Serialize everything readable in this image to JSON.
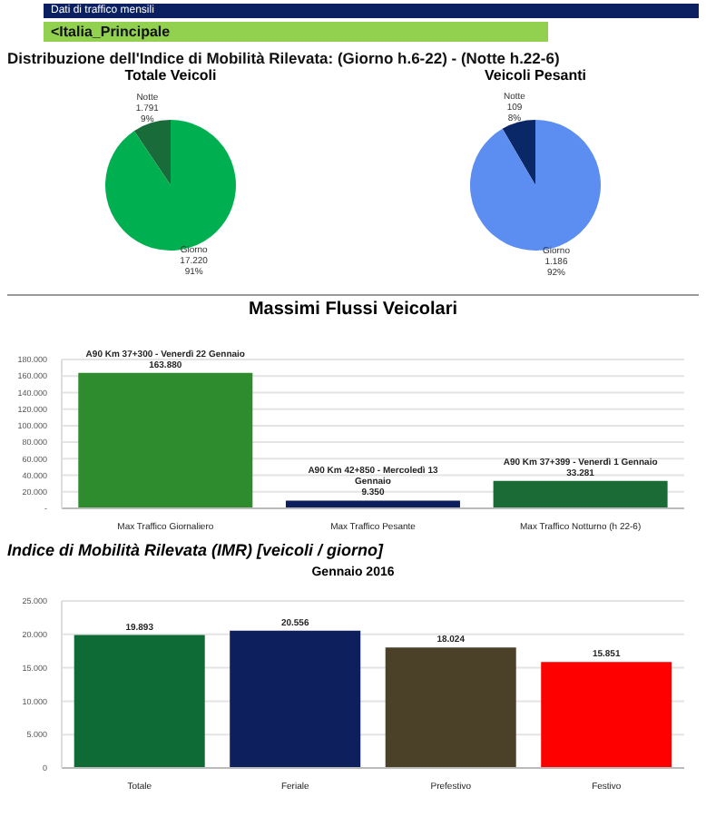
{
  "chart_data": [
    {
      "type": "pie",
      "title": "Totale Veicoli",
      "annotations": [
        "Dati di traffico mensili",
        "<Italia_Principale",
        "Distribuzione dell'Indice di Mobilità Rilevata: (Giorno h.6-22) - (Notte h.22-6)"
      ],
      "categories": [
        "Notte",
        "Giorno"
      ],
      "values": [
        1791,
        17220
      ],
      "value_labels": [
        "1.791\n9%",
        "17.220\n91%"
      ],
      "colors": [
        "#1a6b3a",
        "#00b050"
      ]
    },
    {
      "type": "pie",
      "title": "Veicoli Pesanti",
      "categories": [
        "Notte",
        "Giorno"
      ],
      "values": [
        109,
        1186
      ],
      "value_labels": [
        "109\n8%",
        "1.186\n92%"
      ],
      "colors": [
        "#0a2868",
        "#5b8ef0"
      ]
    },
    {
      "type": "bar",
      "title": "Massimi Flussi Veicolari",
      "categories": [
        "Max Traffico Giornaliero",
        "Max Traffico Pesante",
        "Max Traffico Notturno (h 22-6)"
      ],
      "values": [
        163880,
        9350,
        33281
      ],
      "colors": [
        "#2e8b2e",
        "#0d1f5c",
        "#1a6b35"
      ],
      "value_labels": [
        "A90 Km 37+300 - Venerdì 22 Gennaio\n163.880",
        "A90 Km 42+850 - Mercoledì 13\nGennaio\n9.350",
        "A90 Km 37+399 - Venerdì 1 Gennaio\n33.281"
      ],
      "ylim": [
        0,
        180000
      ],
      "yticks": [
        {
          "value": 0,
          "label": "-"
        },
        {
          "value": 20000,
          "label": "20.000"
        },
        {
          "value": 40000,
          "label": "40.000"
        },
        {
          "value": 60000,
          "label": "60.000"
        },
        {
          "value": 80000,
          "label": "80.000"
        },
        {
          "value": 100000,
          "label": "100.000"
        },
        {
          "value": 120000,
          "label": "120.000"
        },
        {
          "value": 140000,
          "label": "140.000"
        },
        {
          "value": 160000,
          "label": "160.000"
        },
        {
          "value": 180000,
          "label": "180.000"
        }
      ],
      "grid": "y"
    },
    {
      "type": "bar",
      "title": "Gennaio 2016",
      "annotations": [
        "Indice di Mobilità Rilevata (IMR) [veicoli / giorno]"
      ],
      "categories": [
        "Totale",
        "Feriale",
        "Prefestivo",
        "Festivo"
      ],
      "values": [
        19893,
        20556,
        18024,
        15851
      ],
      "colors": [
        "#0e6b35",
        "#0d1f5c",
        "#4a4128",
        "#ff0000"
      ],
      "value_labels": [
        "19.893",
        "20.556",
        "18.024",
        "15.851"
      ],
      "ylim": [
        0,
        25000
      ],
      "yticks": [
        {
          "value": 0,
          "label": "0"
        },
        {
          "value": 5000,
          "label": "5.000"
        },
        {
          "value": 10000,
          "label": "10.000"
        },
        {
          "value": 15000,
          "label": "15.000"
        },
        {
          "value": 20000,
          "label": "20.000"
        },
        {
          "value": 25000,
          "label": "25.000"
        }
      ],
      "grid": "y"
    }
  ]
}
